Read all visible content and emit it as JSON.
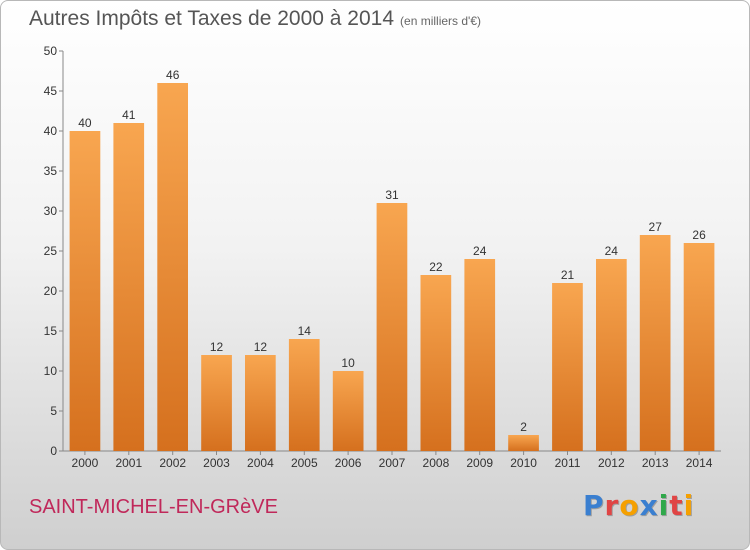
{
  "colors": {
    "bar_top": "#f8a650",
    "bar_bottom": "#d5701e",
    "commune": "#c0285a",
    "logo": [
      "#3a7fd0",
      "#e04545",
      "#f5a000",
      "#3a7fd0",
      "#2fa84a",
      "#e04545",
      "#f5a000"
    ]
  },
  "commune": "SAINT-MICHEL-EN-GRèVE",
  "logo": "Proxiti",
  "chart_data": {
    "type": "bar",
    "title": "Autres Impôts et Taxes de 2000 à 2014",
    "subtitle": "(en milliers d'€)",
    "xlabel": "",
    "ylabel": "",
    "categories": [
      "2000",
      "2001",
      "2002",
      "2003",
      "2004",
      "2005",
      "2006",
      "2007",
      "2008",
      "2009",
      "2010",
      "2011",
      "2012",
      "2013",
      "2014"
    ],
    "values": [
      40,
      41,
      46,
      12,
      12,
      14,
      10,
      31,
      22,
      24,
      2,
      21,
      24,
      27,
      26
    ],
    "ylim": [
      0,
      50
    ],
    "yticks": [
      0,
      5,
      10,
      15,
      20,
      25,
      30,
      35,
      40,
      45,
      50
    ],
    "grid": false,
    "legend": "none"
  }
}
